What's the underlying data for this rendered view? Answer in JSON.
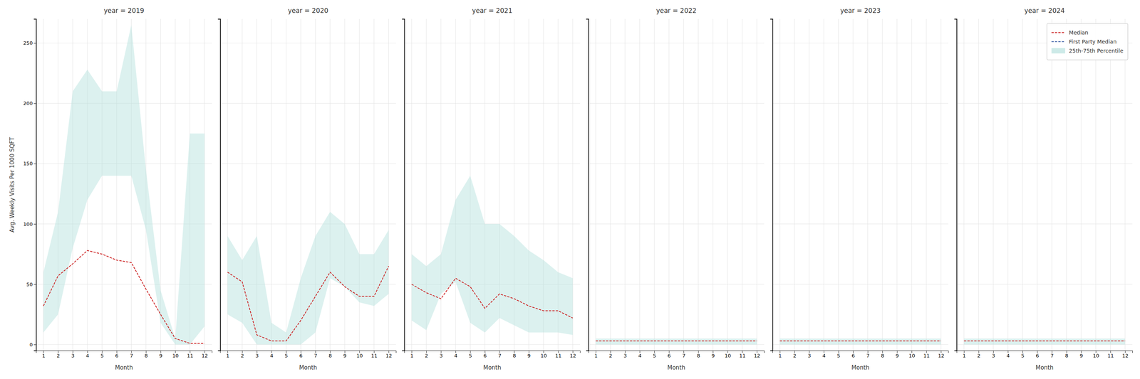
{
  "chart_data": [
    {
      "type": "line",
      "title": "year = 2019",
      "xlabel": "Month",
      "ylabel": "Avg. Weekly Visits Per 1000 SQFT",
      "x": [
        1,
        2,
        3,
        4,
        5,
        6,
        7,
        8,
        9,
        10,
        11,
        12
      ],
      "xlim": [
        0.5,
        12.5
      ],
      "xticks": [
        1,
        2,
        3,
        4,
        5,
        6,
        7,
        8,
        9,
        10,
        11,
        12
      ],
      "ylim": [
        -5,
        270
      ],
      "yticks": [
        0,
        50,
        100,
        150,
        200,
        250
      ],
      "grid": true,
      "series": [
        {
          "name": "Median",
          "type": "line",
          "color": "#cc2222",
          "line_style": "dashed",
          "values": [
            32,
            57,
            67,
            78,
            75,
            70,
            68,
            46,
            25,
            5,
            1,
            1
          ]
        },
        {
          "name": "25th-75th Percentile",
          "type": "area",
          "color": "#b2dfdb",
          "low": [
            10,
            25,
            80,
            120,
            140,
            140,
            140,
            95,
            18,
            0,
            0,
            15
          ],
          "high": [
            60,
            110,
            210,
            228,
            210,
            210,
            265,
            145,
            45,
            5,
            175,
            175
          ]
        }
      ]
    },
    {
      "type": "line",
      "title": "year = 2020",
      "xlabel": "Month",
      "tick_labels": "x",
      "x": [
        1,
        2,
        3,
        4,
        5,
        6,
        7,
        8,
        9,
        10,
        11,
        12
      ],
      "xlim": [
        0.5,
        12.5
      ],
      "xticks": [
        1,
        2,
        3,
        4,
        5,
        6,
        7,
        8,
        9,
        10,
        11,
        12
      ],
      "ylim": [
        -5,
        270
      ],
      "yticks": [
        0,
        50,
        100,
        150,
        200,
        250
      ],
      "grid": true,
      "series": [
        {
          "name": "Median",
          "type": "line",
          "color": "#cc2222",
          "line_style": "dashed",
          "values": [
            60,
            52,
            8,
            3,
            3,
            20,
            40,
            60,
            48,
            40,
            40,
            65
          ]
        },
        {
          "name": "25th-75th Percentile",
          "type": "area",
          "color": "#b2dfdb",
          "low": [
            25,
            18,
            0,
            0,
            0,
            0,
            10,
            55,
            48,
            35,
            32,
            42
          ],
          "high": [
            90,
            70,
            90,
            18,
            10,
            55,
            90,
            110,
            100,
            75,
            75,
            95
          ]
        }
      ]
    },
    {
      "type": "line",
      "title": "year = 2021",
      "xlabel": "Month",
      "tick_labels": "x",
      "x": [
        1,
        2,
        3,
        4,
        5,
        6,
        7,
        8,
        9,
        10,
        11,
        12
      ],
      "xlim": [
        0.5,
        12.5
      ],
      "xticks": [
        1,
        2,
        3,
        4,
        5,
        6,
        7,
        8,
        9,
        10,
        11,
        12
      ],
      "ylim": [
        -5,
        270
      ],
      "yticks": [
        0,
        50,
        100,
        150,
        200,
        250
      ],
      "grid": true,
      "series": [
        {
          "name": "Median",
          "type": "line",
          "color": "#cc2222",
          "line_style": "dashed",
          "values": [
            50,
            43,
            38,
            55,
            48,
            30,
            42,
            38,
            32,
            28,
            28,
            22
          ]
        },
        {
          "name": "25th-75th Percentile",
          "type": "area",
          "color": "#b2dfdb",
          "low": [
            20,
            12,
            42,
            52,
            18,
            10,
            22,
            16,
            10,
            10,
            10,
            8
          ],
          "high": [
            75,
            65,
            75,
            120,
            140,
            100,
            100,
            90,
            78,
            70,
            60,
            55
          ]
        }
      ]
    },
    {
      "type": "line",
      "title": "year = 2022",
      "xlabel": "Month",
      "tick_labels": "x",
      "x": [
        1,
        2,
        3,
        4,
        5,
        6,
        7,
        8,
        9,
        10,
        11,
        12
      ],
      "xlim": [
        0.5,
        12.5
      ],
      "xticks": [
        1,
        2,
        3,
        4,
        5,
        6,
        7,
        8,
        9,
        10,
        11,
        12
      ],
      "ylim": [
        -5,
        270
      ],
      "yticks": [
        0,
        50,
        100,
        150,
        200,
        250
      ],
      "grid": true,
      "series": [
        {
          "name": "Median",
          "type": "line",
          "color": "#cc2222",
          "line_style": "dashed",
          "values": [
            3,
            3,
            3,
            3,
            3,
            3,
            3,
            3,
            3,
            3,
            3,
            3
          ]
        },
        {
          "name": "25th-75th Percentile",
          "type": "area",
          "color": "#b2dfdb",
          "low": [
            0,
            0,
            0,
            0,
            0,
            0,
            0,
            0,
            0,
            0,
            0,
            0
          ],
          "high": [
            5,
            5,
            5,
            5,
            5,
            5,
            5,
            5,
            5,
            5,
            5,
            5
          ]
        }
      ]
    },
    {
      "type": "line",
      "title": "year = 2023",
      "xlabel": "Month",
      "tick_labels": "x",
      "x": [
        1,
        2,
        3,
        4,
        5,
        6,
        7,
        8,
        9,
        10,
        11,
        12
      ],
      "xlim": [
        0.5,
        12.5
      ],
      "xticks": [
        1,
        2,
        3,
        4,
        5,
        6,
        7,
        8,
        9,
        10,
        11,
        12
      ],
      "ylim": [
        -5,
        270
      ],
      "yticks": [
        0,
        50,
        100,
        150,
        200,
        250
      ],
      "grid": true,
      "series": [
        {
          "name": "Median",
          "type": "line",
          "color": "#cc2222",
          "line_style": "dashed",
          "values": [
            3,
            3,
            3,
            3,
            3,
            3,
            3,
            3,
            3,
            3,
            3,
            3
          ]
        },
        {
          "name": "25th-75th Percentile",
          "type": "area",
          "color": "#b2dfdb",
          "low": [
            0,
            0,
            0,
            0,
            0,
            0,
            0,
            0,
            0,
            0,
            0,
            0
          ],
          "high": [
            5,
            5,
            5,
            5,
            5,
            5,
            5,
            5,
            5,
            5,
            5,
            5
          ]
        }
      ]
    },
    {
      "type": "line",
      "title": "year = 2024",
      "xlabel": "Month",
      "tick_labels": "x",
      "legend": "upper right",
      "x": [
        1,
        2,
        3,
        4,
        5,
        6,
        7,
        8,
        9,
        10,
        11,
        12
      ],
      "xlim": [
        0.5,
        12.5
      ],
      "xticks": [
        1,
        2,
        3,
        4,
        5,
        6,
        7,
        8,
        9,
        10,
        11,
        12
      ],
      "ylim": [
        -5,
        270
      ],
      "yticks": [
        0,
        50,
        100,
        150,
        200,
        250
      ],
      "grid": true,
      "series": [
        {
          "name": "Median",
          "type": "line",
          "color": "#cc2222",
          "line_style": "dashed",
          "values": [
            3,
            3,
            3,
            3,
            3,
            3,
            3,
            3,
            3,
            3,
            3,
            3
          ]
        },
        {
          "name": "First Party Median",
          "type": "line",
          "color": "#4466aa",
          "line_style": "dashed",
          "values": [
            null,
            null,
            null,
            null,
            null,
            null,
            null,
            null,
            null,
            null,
            null,
            null
          ]
        },
        {
          "name": "25th-75th Percentile",
          "type": "area",
          "color": "#b2dfdb",
          "low": [
            0,
            0,
            0,
            0,
            0,
            0,
            0,
            0,
            0,
            0,
            0,
            0
          ],
          "high": [
            5,
            5,
            5,
            5,
            5,
            5,
            5,
            5,
            5,
            5,
            5,
            5
          ]
        }
      ]
    }
  ]
}
